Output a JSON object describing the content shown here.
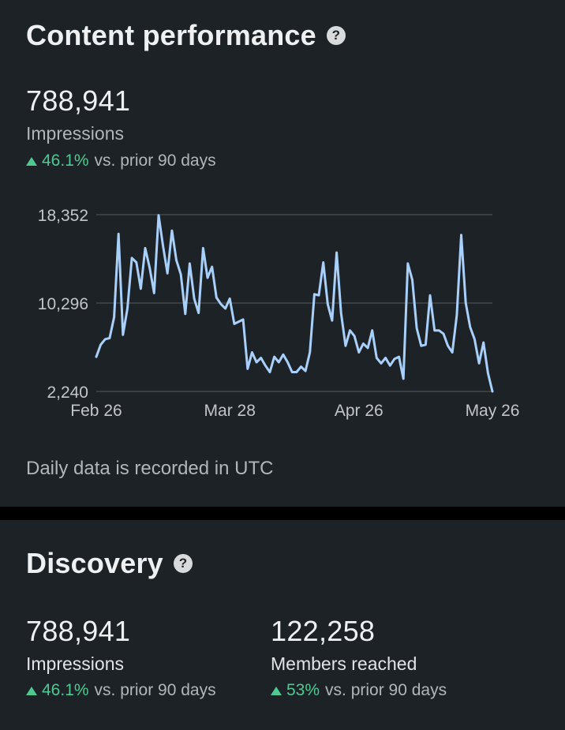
{
  "content_performance": {
    "title": "Content performance",
    "help_icon": "question-circle-icon",
    "value": "788,941",
    "label": "Impressions",
    "delta_pct": "46.1%",
    "delta_text": "vs. prior 90 days",
    "note": "Daily data is recorded in UTC"
  },
  "discovery": {
    "title": "Discovery",
    "help_icon": "question-circle-icon",
    "stats": [
      {
        "value": "788,941",
        "label": "Impressions",
        "delta_pct": "46.1%",
        "delta_text": "vs. prior 90 days"
      },
      {
        "value": "122,258",
        "label": "Members reached",
        "delta_pct": "53%",
        "delta_text": "vs. prior 90 days"
      }
    ]
  },
  "colors": {
    "background": "#1d2226",
    "line": "#a9d0fb",
    "positive": "#4fc992",
    "gridline": "#4a4f54"
  },
  "chart_data": {
    "type": "line",
    "title": "",
    "xlabel": "",
    "ylabel": "",
    "yticks": [
      "18,352",
      "10,296",
      "2,240"
    ],
    "ylim": [
      2240,
      18352
    ],
    "xticks": [
      {
        "label": "Feb 26",
        "x": "2025-02-26"
      },
      {
        "label": "Mar 28",
        "x": "2025-03-28"
      },
      {
        "label": "Apr 26",
        "x": "2025-04-26"
      },
      {
        "label": "May 26",
        "x": "2025-05-26"
      }
    ],
    "grid": true,
    "series": [
      {
        "x": [
          "2025-02-26",
          "2025-02-27",
          "2025-02-28",
          "2025-03-01",
          "2025-03-02",
          "2025-03-03",
          "2025-03-04",
          "2025-03-05",
          "2025-03-06",
          "2025-03-07",
          "2025-03-08",
          "2025-03-09",
          "2025-03-10",
          "2025-03-11",
          "2025-03-12",
          "2025-03-13",
          "2025-03-14",
          "2025-03-15",
          "2025-03-16",
          "2025-03-17",
          "2025-03-18",
          "2025-03-19",
          "2025-03-20",
          "2025-03-21",
          "2025-03-22",
          "2025-03-23",
          "2025-03-24",
          "2025-03-25",
          "2025-03-26",
          "2025-03-27",
          "2025-03-28",
          "2025-03-29",
          "2025-03-30",
          "2025-03-31",
          "2025-04-01",
          "2025-04-02",
          "2025-04-03",
          "2025-04-04",
          "2025-04-05",
          "2025-04-06",
          "2025-04-07",
          "2025-04-08",
          "2025-04-09",
          "2025-04-10",
          "2025-04-11",
          "2025-04-12",
          "2025-04-13",
          "2025-04-14",
          "2025-04-15",
          "2025-04-16",
          "2025-04-17",
          "2025-04-18",
          "2025-04-19",
          "2025-04-20",
          "2025-04-21",
          "2025-04-22",
          "2025-04-23",
          "2025-04-24",
          "2025-04-25",
          "2025-04-26",
          "2025-04-27",
          "2025-04-28",
          "2025-04-29",
          "2025-04-30",
          "2025-05-01",
          "2025-05-02",
          "2025-05-03",
          "2025-05-04",
          "2025-05-05",
          "2025-05-06",
          "2025-05-07",
          "2025-05-08",
          "2025-05-09",
          "2025-05-10",
          "2025-05-11",
          "2025-05-12",
          "2025-05-13",
          "2025-05-14",
          "2025-05-15",
          "2025-05-16",
          "2025-05-17",
          "2025-05-18",
          "2025-05-19",
          "2025-05-20",
          "2025-05-21",
          "2025-05-22",
          "2025-05-23",
          "2025-05-24",
          "2025-05-25",
          "2025-05-26"
        ],
        "values": [
          5400,
          6500,
          7000,
          7100,
          9000,
          16600,
          7400,
          9800,
          14400,
          14000,
          11600,
          15300,
          13500,
          11200,
          18300,
          15500,
          13000,
          16900,
          14200,
          12900,
          9300,
          13900,
          10700,
          9400,
          15300,
          12600,
          13600,
          10800,
          10200,
          9800,
          10700,
          8400,
          8600,
          8800,
          4300,
          5800,
          4900,
          5300,
          4600,
          4000,
          5400,
          4900,
          5600,
          4900,
          4000,
          4000,
          4500,
          4100,
          5800,
          11100,
          11000,
          14000,
          10200,
          8700,
          14900,
          9400,
          6400,
          7800,
          7300,
          5800,
          6600,
          6200,
          7800,
          5300,
          4800,
          5300,
          4600,
          5200,
          5400,
          3400,
          13900,
          12400,
          8000,
          6400,
          6500,
          11000,
          7800,
          7800,
          7500,
          6400,
          5800,
          9200,
          16500,
          10300,
          8100,
          7000,
          4800,
          6700,
          3900,
          2240
        ]
      }
    ]
  }
}
